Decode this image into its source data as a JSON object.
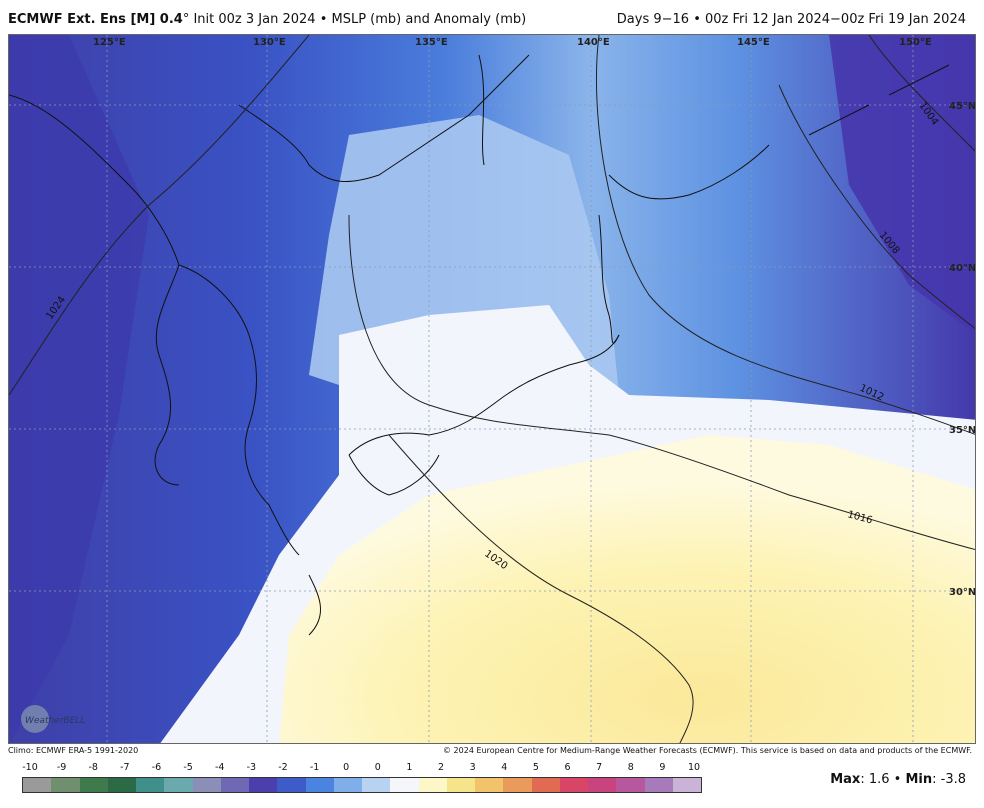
{
  "header": {
    "model": "ECMWF Ext. Ens [M] 0.4",
    "deg": "°",
    "init": "Init 00z 3 Jan 2024",
    "sep": "•",
    "field": "MSLP (mb) and Anomaly (mb)",
    "valid": "Days 9−16 • 00z Fri 12 Jan 2024−00z Fri 19 Jan 2024"
  },
  "map": {
    "longitudes": [
      "125°E",
      "130°E",
      "135°E",
      "140°E",
      "145°E",
      "150°E"
    ],
    "latitudes": [
      "45°N",
      "40°N",
      "35°N",
      "30°N"
    ],
    "isobars": [
      "1024",
      "1004",
      "1008",
      "1012",
      "1016",
      "1020"
    ],
    "logo": "WeatherBELL",
    "colors": {
      "deep_negative": "#4a3fae",
      "negative": "#3c6cd6",
      "mild_negative": "#9cc0ee",
      "near_zero": "#f2f5fb",
      "positive": "#fdf3b0"
    }
  },
  "footer": {
    "climo": "Climo: ECMWF ERA-5 1991-2020",
    "copyright": "© 2024 European Centre for Medium-Range Weather Forecasts (ECMWF). This service is based on data and products of the ECMWF."
  },
  "colorbar": {
    "labels": [
      "-10",
      "-9",
      "-8",
      "-7",
      "-6",
      "-5",
      "-4",
      "-3",
      "-2",
      "-1",
      "0",
      "0",
      "1",
      "2",
      "3",
      "4",
      "5",
      "6",
      "7",
      "8",
      "9",
      "10"
    ],
    "colors": [
      "#9a9a9a",
      "#6f8f6f",
      "#3e7a4c",
      "#2a6b46",
      "#3f8f8a",
      "#6aa9ad",
      "#8a8fb8",
      "#6f68b5",
      "#4b3fae",
      "#3d5cc9",
      "#4b84e0",
      "#7faee8",
      "#b8d2f2",
      "#f4f6fb",
      "#fdf6c6",
      "#f6e48a",
      "#f1c36a",
      "#ea9a5b",
      "#e06a52",
      "#d84566",
      "#c9437f",
      "#b7589f",
      "#a77bbb",
      "#c9b4d8"
    ]
  },
  "stats": {
    "max_label": "Max",
    "max_value": ": 1.6",
    "sep": " • ",
    "min_label": "Min",
    "min_value": ": -3.8"
  }
}
